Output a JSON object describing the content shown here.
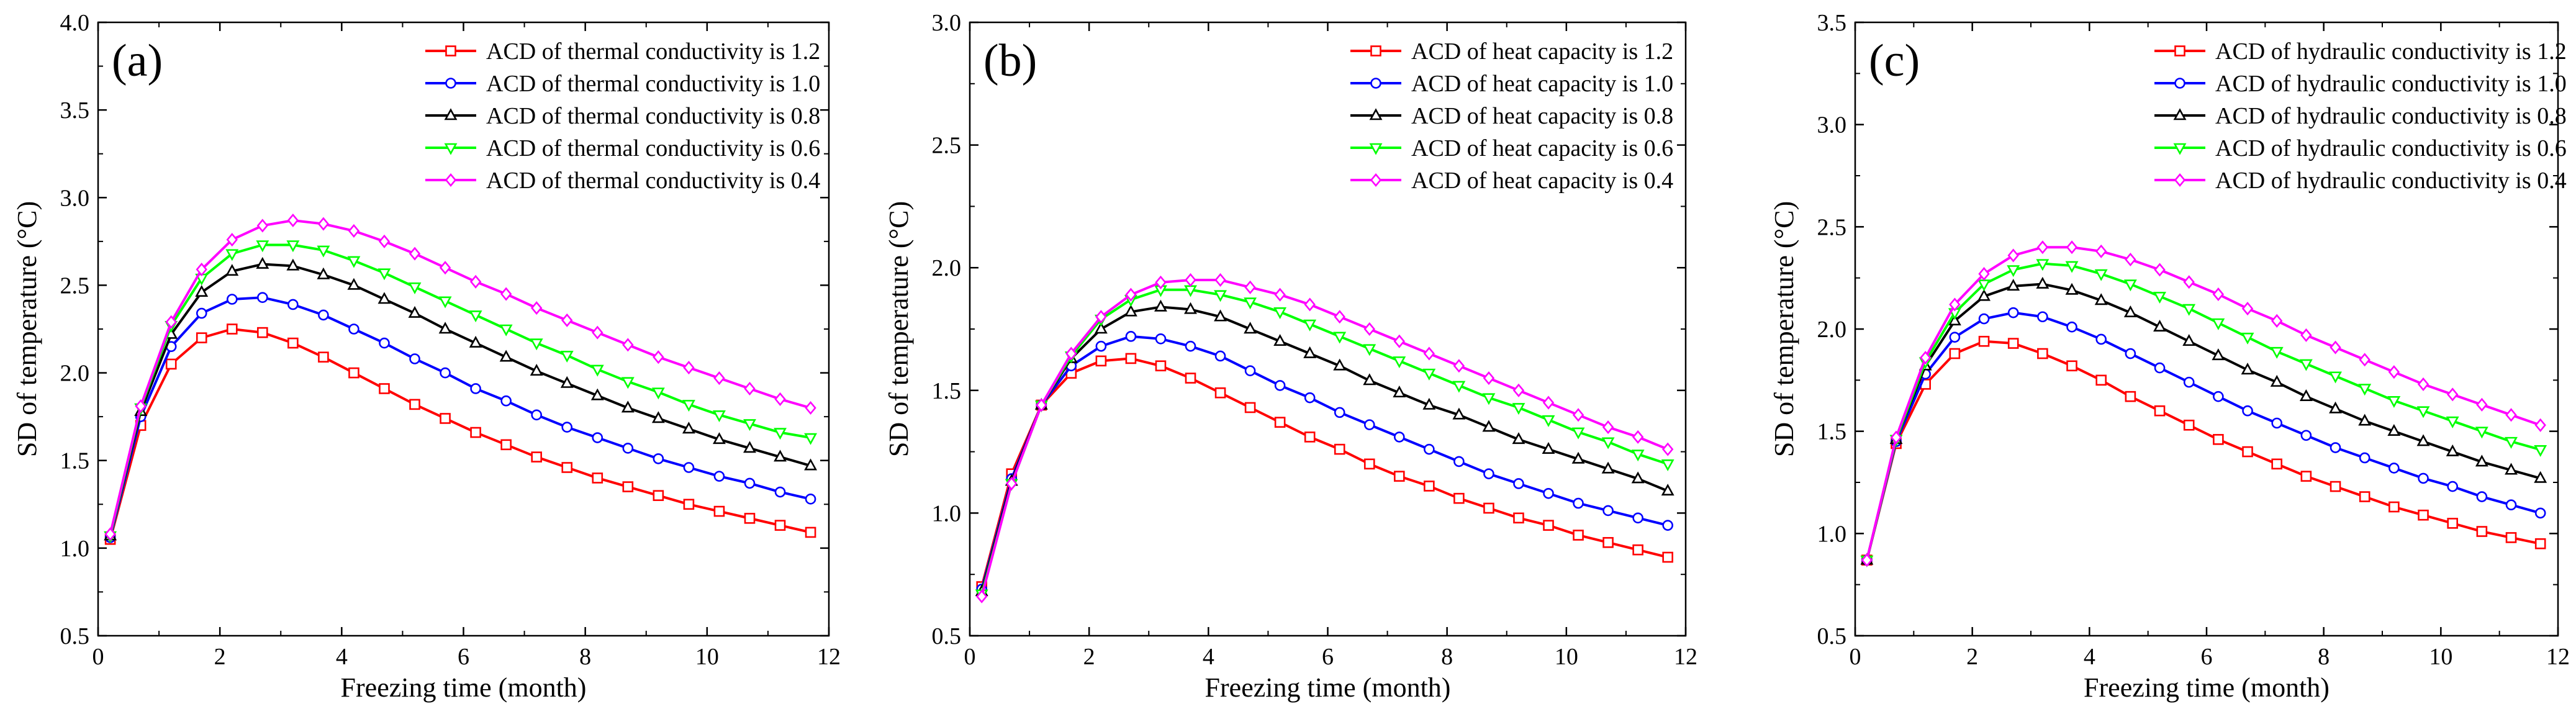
{
  "figure": {
    "panels": [
      {
        "label": "(a)",
        "legend_title_prefix": "ACD of thermal conductivity is"
      },
      {
        "label": "(b)",
        "legend_title_prefix": "ACD of heat capacity is"
      },
      {
        "label": "(c)",
        "legend_title_prefix": "ACD of hydraulic conductivity is"
      }
    ]
  },
  "series_colors": {
    "1.2": "#ff0000",
    "1.0": "#0000ff",
    "0.8": "#000000",
    "0.6": "#00ff00",
    "0.4": "#ff00ff"
  },
  "chart_data": [
    {
      "type": "line",
      "panel_label": "(a)",
      "xlabel": "Freezing time (month)",
      "ylabel": "SD of temperature (°C)",
      "xlim": [
        0,
        12
      ],
      "ylim": [
        0.5,
        4.0
      ],
      "xticks": [
        "0",
        "2",
        "4",
        "6",
        "8",
        "10",
        "12"
      ],
      "yticks": [
        "0.5",
        "1.0",
        "1.5",
        "2.0",
        "2.5",
        "3.0",
        "3.5",
        "4.0"
      ],
      "legend_position": "top-right",
      "x": [
        0.2,
        0.7,
        1.2,
        1.7,
        2.2,
        2.7,
        3.2,
        3.7,
        4.2,
        4.7,
        5.2,
        5.7,
        6.2,
        6.7,
        7.2,
        7.7,
        8.2,
        8.7,
        9.2,
        9.7,
        10.2,
        10.7,
        11.2,
        11.7
      ],
      "series": [
        {
          "name": "ACD of thermal conductivity is 1.2",
          "key": "1.2",
          "marker": "square",
          "values": [
            1.05,
            1.7,
            2.05,
            2.2,
            2.25,
            2.23,
            2.17,
            2.09,
            2.0,
            1.91,
            1.82,
            1.74,
            1.66,
            1.59,
            1.52,
            1.46,
            1.4,
            1.35,
            1.3,
            1.25,
            1.21,
            1.17,
            1.13,
            1.09
          ]
        },
        {
          "name": "ACD of thermal conductivity is 1.0",
          "key": "1.0",
          "marker": "circle",
          "values": [
            1.06,
            1.75,
            2.15,
            2.34,
            2.42,
            2.43,
            2.39,
            2.33,
            2.25,
            2.17,
            2.08,
            2.0,
            1.91,
            1.84,
            1.76,
            1.69,
            1.63,
            1.57,
            1.51,
            1.46,
            1.41,
            1.37,
            1.32,
            1.28
          ]
        },
        {
          "name": "ACD of thermal conductivity is 0.8",
          "key": "0.8",
          "marker": "triangle",
          "values": [
            1.07,
            1.78,
            2.22,
            2.46,
            2.58,
            2.62,
            2.61,
            2.56,
            2.5,
            2.42,
            2.34,
            2.25,
            2.17,
            2.09,
            2.01,
            1.94,
            1.87,
            1.8,
            1.74,
            1.68,
            1.62,
            1.57,
            1.52,
            1.47
          ]
        },
        {
          "name": "ACD of thermal conductivity is 0.6",
          "key": "0.6",
          "marker": "triangle-down",
          "values": [
            1.07,
            1.8,
            2.27,
            2.54,
            2.68,
            2.73,
            2.73,
            2.7,
            2.64,
            2.57,
            2.49,
            2.41,
            2.33,
            2.25,
            2.17,
            2.1,
            2.02,
            1.95,
            1.89,
            1.82,
            1.76,
            1.71,
            1.66,
            1.63
          ]
        },
        {
          "name": "ACD of thermal conductivity is 0.4",
          "key": "0.4",
          "marker": "diamond",
          "values": [
            1.08,
            1.81,
            2.29,
            2.59,
            2.76,
            2.84,
            2.87,
            2.85,
            2.81,
            2.75,
            2.68,
            2.6,
            2.52,
            2.45,
            2.37,
            2.3,
            2.23,
            2.16,
            2.09,
            2.03,
            1.97,
            1.91,
            1.85,
            1.8
          ]
        }
      ]
    },
    {
      "type": "line",
      "panel_label": "(b)",
      "xlabel": "Freezing time (month)",
      "ylabel": "SD of temperature (°C)",
      "xlim": [
        0,
        12
      ],
      "ylim": [
        0.5,
        3.0
      ],
      "xticks": [
        "0",
        "2",
        "4",
        "6",
        "8",
        "10",
        "12"
      ],
      "yticks": [
        "0.5",
        "1.0",
        "1.5",
        "2.0",
        "2.5",
        "3.0"
      ],
      "legend_position": "top-right",
      "x": [
        0.2,
        0.7,
        1.2,
        1.7,
        2.2,
        2.7,
        3.2,
        3.7,
        4.2,
        4.7,
        5.2,
        5.7,
        6.2,
        6.7,
        7.2,
        7.7,
        8.2,
        8.7,
        9.2,
        9.7,
        10.2,
        10.7,
        11.2,
        11.7
      ],
      "series": [
        {
          "name": "ACD of heat capacity is 1.2",
          "key": "1.2",
          "marker": "square",
          "values": [
            0.7,
            1.16,
            1.44,
            1.57,
            1.62,
            1.63,
            1.6,
            1.55,
            1.49,
            1.43,
            1.37,
            1.31,
            1.26,
            1.2,
            1.15,
            1.11,
            1.06,
            1.02,
            0.98,
            0.95,
            0.91,
            0.88,
            0.85,
            0.82
          ]
        },
        {
          "name": "ACD of heat capacity is 1.0",
          "key": "1.0",
          "marker": "circle",
          "values": [
            0.69,
            1.14,
            1.44,
            1.6,
            1.68,
            1.72,
            1.71,
            1.68,
            1.64,
            1.58,
            1.52,
            1.47,
            1.41,
            1.36,
            1.31,
            1.26,
            1.21,
            1.16,
            1.12,
            1.08,
            1.04,
            1.01,
            0.98,
            0.95
          ]
        },
        {
          "name": "ACD of heat capacity is 0.8",
          "key": "0.8",
          "marker": "triangle",
          "values": [
            0.68,
            1.13,
            1.44,
            1.63,
            1.75,
            1.82,
            1.84,
            1.83,
            1.8,
            1.75,
            1.7,
            1.65,
            1.6,
            1.54,
            1.49,
            1.44,
            1.4,
            1.35,
            1.3,
            1.26,
            1.22,
            1.18,
            1.14,
            1.09
          ]
        },
        {
          "name": "ACD of heat capacity is 0.6",
          "key": "0.6",
          "marker": "triangle-down",
          "values": [
            0.67,
            1.12,
            1.44,
            1.64,
            1.79,
            1.87,
            1.91,
            1.91,
            1.89,
            1.86,
            1.82,
            1.77,
            1.72,
            1.67,
            1.62,
            1.57,
            1.52,
            1.47,
            1.43,
            1.38,
            1.33,
            1.29,
            1.24,
            1.2
          ]
        },
        {
          "name": "ACD of heat capacity is 0.4",
          "key": "0.4",
          "marker": "diamond",
          "values": [
            0.66,
            1.12,
            1.44,
            1.65,
            1.8,
            1.89,
            1.94,
            1.95,
            1.95,
            1.92,
            1.89,
            1.85,
            1.8,
            1.75,
            1.7,
            1.65,
            1.6,
            1.55,
            1.5,
            1.45,
            1.4,
            1.35,
            1.31,
            1.26
          ]
        }
      ]
    },
    {
      "type": "line",
      "panel_label": "(c)",
      "xlabel": "Freezing time (month)",
      "ylabel": "SD of temperature (°C)",
      "xlim": [
        0,
        12
      ],
      "ylim": [
        0.5,
        3.5
      ],
      "xticks": [
        "0",
        "2",
        "4",
        "6",
        "8",
        "10",
        "12"
      ],
      "yticks": [
        "0.5",
        "1.0",
        "1.5",
        "2.0",
        "2.5",
        "3.0",
        "3.5"
      ],
      "legend_position": "top-right",
      "x": [
        0.2,
        0.7,
        1.2,
        1.7,
        2.2,
        2.7,
        3.2,
        3.7,
        4.2,
        4.7,
        5.2,
        5.7,
        6.2,
        6.7,
        7.2,
        7.7,
        8.2,
        8.7,
        9.2,
        9.7,
        10.2,
        10.7,
        11.2,
        11.7
      ],
      "series": [
        {
          "name": "ACD of hydraulic conductivity is 1.2",
          "key": "1.2",
          "marker": "square",
          "values": [
            0.87,
            1.44,
            1.73,
            1.88,
            1.94,
            1.93,
            1.88,
            1.82,
            1.75,
            1.67,
            1.6,
            1.53,
            1.46,
            1.4,
            1.34,
            1.28,
            1.23,
            1.18,
            1.13,
            1.09,
            1.05,
            1.01,
            0.98,
            0.95
          ]
        },
        {
          "name": "ACD of hydraulic conductivity is 1.0",
          "key": "1.0",
          "marker": "circle",
          "values": [
            0.87,
            1.45,
            1.78,
            1.96,
            2.05,
            2.08,
            2.06,
            2.01,
            1.95,
            1.88,
            1.81,
            1.74,
            1.67,
            1.6,
            1.54,
            1.48,
            1.42,
            1.37,
            1.32,
            1.27,
            1.23,
            1.18,
            1.14,
            1.1
          ]
        },
        {
          "name": "ACD of hydraulic conductivity is 0.8",
          "key": "0.8",
          "marker": "triangle",
          "values": [
            0.87,
            1.46,
            1.82,
            2.04,
            2.16,
            2.21,
            2.22,
            2.19,
            2.14,
            2.08,
            2.01,
            1.94,
            1.87,
            1.8,
            1.74,
            1.67,
            1.61,
            1.55,
            1.5,
            1.45,
            1.4,
            1.35,
            1.31,
            1.27
          ]
        },
        {
          "name": "ACD of hydraulic conductivity is 0.6",
          "key": "0.6",
          "marker": "triangle-down",
          "values": [
            0.87,
            1.46,
            1.84,
            2.08,
            2.22,
            2.29,
            2.32,
            2.31,
            2.27,
            2.22,
            2.16,
            2.1,
            2.03,
            1.96,
            1.89,
            1.83,
            1.77,
            1.71,
            1.65,
            1.6,
            1.55,
            1.5,
            1.45,
            1.41
          ]
        },
        {
          "name": "ACD of hydraulic conductivity is 0.4",
          "key": "0.4",
          "marker": "diamond",
          "values": [
            0.87,
            1.47,
            1.86,
            2.12,
            2.27,
            2.36,
            2.4,
            2.4,
            2.38,
            2.34,
            2.29,
            2.23,
            2.17,
            2.1,
            2.04,
            1.97,
            1.91,
            1.85,
            1.79,
            1.73,
            1.68,
            1.63,
            1.58,
            1.53
          ]
        }
      ]
    }
  ]
}
